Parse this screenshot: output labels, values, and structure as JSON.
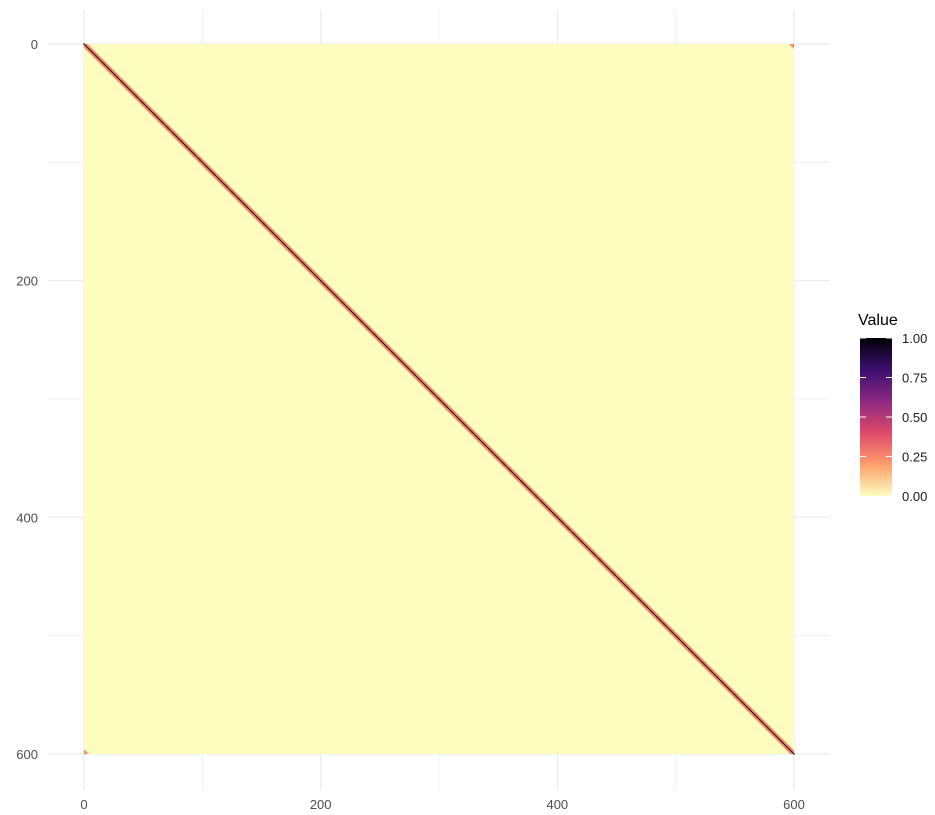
{
  "chart_data": {
    "type": "heatmap",
    "title": "",
    "xlabel": "",
    "ylabel": "",
    "xlim": [
      0,
      600
    ],
    "ylim": [
      0,
      600
    ],
    "y_reversed": true,
    "x_ticks": [
      0,
      200,
      400,
      600
    ],
    "y_ticks": [
      0,
      200,
      400,
      600
    ],
    "x_tick_labels": [
      "0",
      "200",
      "400",
      "600"
    ],
    "y_tick_labels": [
      "0",
      "200",
      "400",
      "600"
    ],
    "grid": true,
    "background_value": 0.0,
    "diagonal_value": 1.0,
    "near_diagonal_value": 0.25,
    "corner_values": [
      {
        "row": 0,
        "col": 600,
        "value": 0.25
      },
      {
        "row": 600,
        "col": 0,
        "value": 0.25
      }
    ],
    "legend": {
      "title": "Value",
      "position": "right",
      "ticks": [
        1.0,
        0.75,
        0.5,
        0.25,
        0.0
      ],
      "tick_labels": [
        "1.00",
        "0.75",
        "0.50",
        "0.25",
        "0.00"
      ]
    },
    "colormap": "magma-reversed",
    "colors": {
      "low": "#fcfdbf",
      "high": "#000004",
      "gradient": [
        "#000004",
        "#3b0f70",
        "#8c2981",
        "#de4968",
        "#fe9f6d",
        "#fcfdbf"
      ],
      "grid": "#ebebeb"
    }
  }
}
